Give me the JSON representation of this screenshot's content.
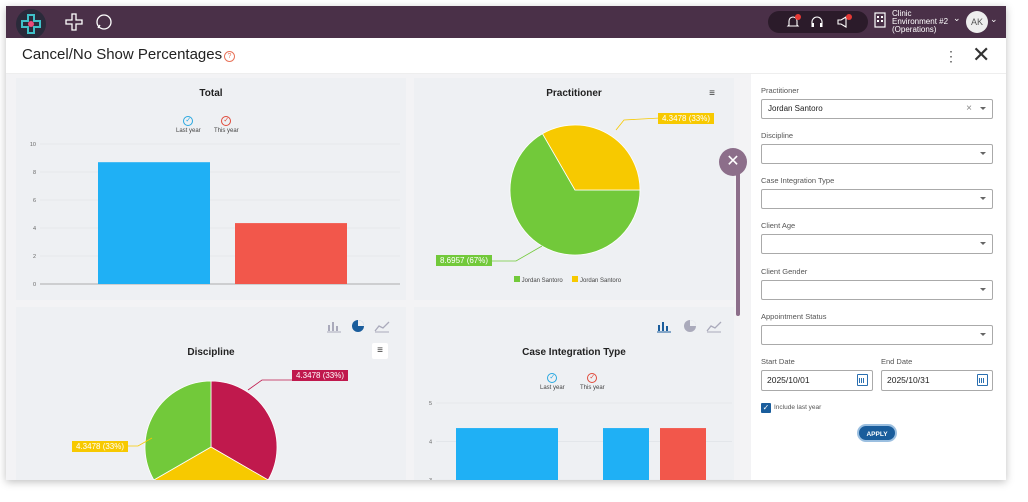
{
  "topbar": {
    "logo_icon": "medical-cross-logo",
    "nav_icons": [
      "cross-icon",
      "chat-icon"
    ],
    "notification_icons": [
      "bell-icon",
      "headset-icon",
      "megaphone-icon"
    ],
    "clinic": {
      "line1": "Clinic",
      "line2": "Environment #2",
      "line3": "(Operations)"
    },
    "avatar": "AK",
    "avatar_chevron": "⌄"
  },
  "header": {
    "title": "Cancel/No Show Percentages",
    "help": "?",
    "kebab": "⋮",
    "close": "✕"
  },
  "charts": {
    "total": {
      "title": "Total",
      "legend": [
        {
          "label": "Last year",
          "color": "#29a8e0"
        },
        {
          "label": "This year",
          "color": "#e04a3a"
        }
      ]
    },
    "practitioner": {
      "title": "Practitioner",
      "menu": "≡",
      "legend": [
        {
          "label": "Jordan  Santoro",
          "color": "#72c234"
        },
        {
          "label": "Jordan  Santoro",
          "color": "#f5c800"
        }
      ],
      "labels": [
        "4.3478 (33%)",
        "8.6957 (67%)"
      ]
    },
    "discipline": {
      "title": "Discipline",
      "menu": "≡",
      "labels": [
        "4.3478 (33%)",
        "4.3478 (33%)"
      ]
    },
    "case_integration": {
      "title": "Case Integration Type",
      "legend": [
        {
          "label": "Last year",
          "color": "#29a8e0"
        },
        {
          "label": "This year",
          "color": "#e04a3a"
        }
      ]
    }
  },
  "chart_data": [
    {
      "type": "bar",
      "title": "Total",
      "categories": [
        "Last year",
        "This year"
      ],
      "values": [
        8.7,
        4.35
      ],
      "ylim": [
        0,
        10
      ],
      "yticks": [
        "0",
        "2",
        "4",
        "6",
        "8",
        "10"
      ],
      "colors": [
        "#1fb0f5",
        "#f2574b"
      ]
    },
    {
      "type": "pie",
      "title": "Practitioner",
      "labels": [
        "Jordan  Santoro",
        "Jordan  Santoro"
      ],
      "values": [
        8.6957,
        4.3478
      ],
      "percent": [
        67,
        33
      ],
      "colors": [
        "#72c93a",
        "#f7c900"
      ]
    },
    {
      "type": "pie",
      "title": "Discipline",
      "values": [
        4.3478,
        4.3478,
        4.3478
      ],
      "percent": [
        33,
        33,
        33
      ],
      "colors": [
        "#c0194d",
        "#f7c900",
        "#72c93a"
      ]
    },
    {
      "type": "bar",
      "title": "Case Integration Type",
      "yticks": [
        "3",
        "4",
        "5"
      ],
      "ylim": [
        2.2,
        5
      ],
      "values": [
        4.35,
        4.35,
        4.35
      ],
      "colors": [
        "#1fb0f5",
        "#1fb0f5",
        "#f2574b"
      ]
    }
  ],
  "filters": {
    "practitioner": {
      "label": "Practitioner",
      "value": "Jordan  Santoro",
      "clear": "×"
    },
    "discipline": {
      "label": "Discipline",
      "value": ""
    },
    "case_integration_type": {
      "label": "Case Integration Type",
      "value": ""
    },
    "client_age": {
      "label": "Client Age",
      "value": ""
    },
    "client_gender": {
      "label": "Client Gender",
      "value": ""
    },
    "appointment_status": {
      "label": "Appointment Status",
      "value": ""
    },
    "start_date": {
      "label": "Start Date",
      "value": "2025/10/01"
    },
    "end_date": {
      "label": "End Date",
      "value": "2025/10/31"
    },
    "include_last_year": {
      "label": "Include last year",
      "checked": true,
      "mark": "✓"
    },
    "apply": "APPLY"
  },
  "fab": "✕"
}
